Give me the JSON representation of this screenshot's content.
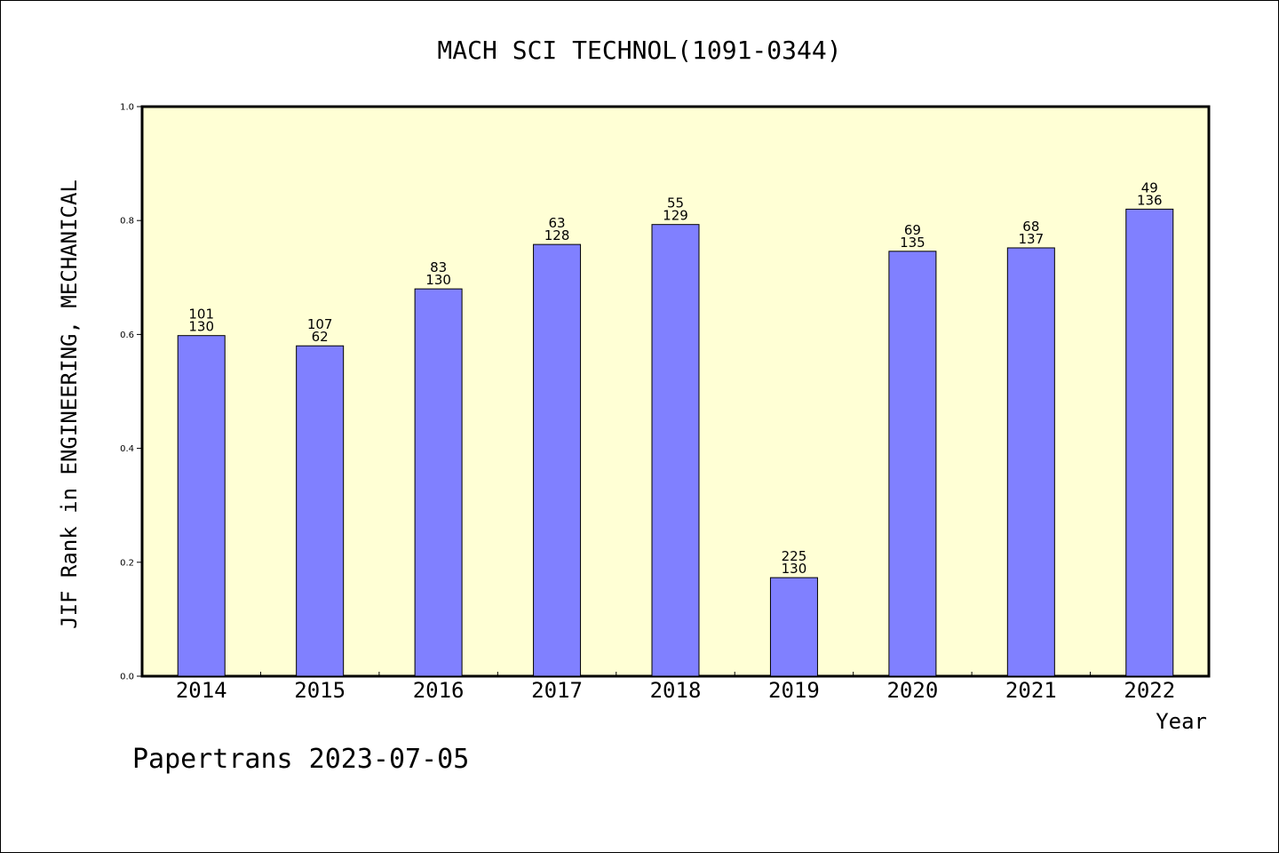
{
  "chart_data": {
    "type": "bar",
    "title": "MACH SCI TECHNOL(1091-0344)",
    "xlabel": "Year",
    "ylabel": "JIF Rank in ENGINEERING, MECHANICAL",
    "ylim": [
      0,
      1.0
    ],
    "yticks": [
      "0.0",
      "0.2",
      "0.4",
      "0.6",
      "0.8",
      "1.0"
    ],
    "categories": [
      "2014",
      "2015",
      "2016",
      "2017",
      "2018",
      "2019",
      "2020",
      "2021",
      "2022"
    ],
    "values": [
      0.598,
      0.58,
      0.68,
      0.758,
      0.793,
      0.173,
      0.746,
      0.752,
      0.82
    ],
    "labels_top": [
      "101",
      "107",
      "83",
      "63",
      "55",
      "225",
      "69",
      "68",
      "49"
    ],
    "labels_bottom": [
      "130",
      "62",
      "130",
      "128",
      "129",
      "130",
      "135",
      "137",
      "136"
    ],
    "grid": false,
    "colors": {
      "bar": "#8080ff",
      "plot_background": "#ffffd5",
      "bar_edge": "#000000"
    }
  },
  "footer": "Papertrans 2023-07-05"
}
